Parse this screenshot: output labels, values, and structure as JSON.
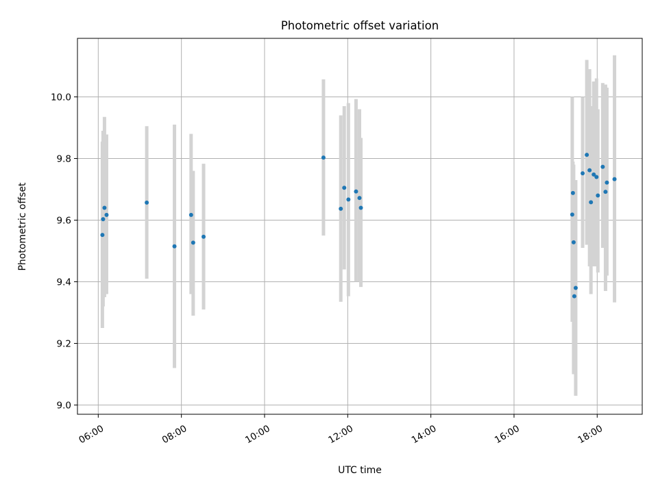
{
  "chart_data": {
    "type": "scatter",
    "title": "Photometric offset variation",
    "xlabel": "UTC time",
    "ylabel": "Photometric offset",
    "xlim": [
      "05:30",
      "19:05"
    ],
    "ylim": [
      8.97,
      10.19
    ],
    "x_ticks": [
      "06:00",
      "08:00",
      "10:00",
      "12:00",
      "14:00",
      "16:00",
      "18:00"
    ],
    "y_ticks": [
      "9.0",
      "9.2",
      "9.4",
      "9.6",
      "9.8",
      "10.0"
    ],
    "grid": true,
    "legend": false,
    "colors": {
      "point": "#1f77b4",
      "errorbar": "#d3d3d3",
      "grid": "#b0b0b0"
    },
    "points": [
      {
        "x": "06:06",
        "y": 9.552,
        "ylow": 9.25,
        "yhigh": 9.855
      },
      {
        "x": "06:07",
        "y": 9.603,
        "ylow": 9.32,
        "yhigh": 9.89
      },
      {
        "x": "06:09",
        "y": 9.64,
        "ylow": 9.35,
        "yhigh": 9.935
      },
      {
        "x": "06:12",
        "y": 9.617,
        "ylow": 9.36,
        "yhigh": 9.878
      },
      {
        "x": "07:10",
        "y": 9.657,
        "ylow": 9.41,
        "yhigh": 9.905
      },
      {
        "x": "07:50",
        "y": 9.515,
        "ylow": 9.12,
        "yhigh": 9.91
      },
      {
        "x": "08:14",
        "y": 9.617,
        "ylow": 9.36,
        "yhigh": 9.88
      },
      {
        "x": "08:17",
        "y": 9.527,
        "ylow": 9.29,
        "yhigh": 9.76
      },
      {
        "x": "08:32",
        "y": 9.546,
        "ylow": 9.31,
        "yhigh": 9.783
      },
      {
        "x": "11:25",
        "y": 9.803,
        "ylow": 9.55,
        "yhigh": 10.057
      },
      {
        "x": "11:50",
        "y": 9.637,
        "ylow": 9.335,
        "yhigh": 9.94
      },
      {
        "x": "11:55",
        "y": 9.705,
        "ylow": 9.44,
        "yhigh": 9.97
      },
      {
        "x": "12:01",
        "y": 9.667,
        "ylow": 9.353,
        "yhigh": 9.98
      },
      {
        "x": "12:12",
        "y": 9.693,
        "ylow": 9.4,
        "yhigh": 9.993
      },
      {
        "x": "12:17",
        "y": 9.672,
        "ylow": 9.4,
        "yhigh": 9.96
      },
      {
        "x": "12:19",
        "y": 9.64,
        "ylow": 9.383,
        "yhigh": 9.867
      },
      {
        "x": "17:24",
        "y": 9.618,
        "ylow": 9.27,
        "yhigh": 10.0
      },
      {
        "x": "17:25",
        "y": 9.688,
        "ylow": 9.45,
        "yhigh": 9.79
      },
      {
        "x": "17:26",
        "y": 9.528,
        "ylow": 9.1,
        "yhigh": 9.78
      },
      {
        "x": "17:27",
        "y": 9.353,
        "ylow": 9.19,
        "yhigh": 9.52
      },
      {
        "x": "17:29",
        "y": 9.38,
        "ylow": 9.03,
        "yhigh": 9.73
      },
      {
        "x": "17:39",
        "y": 9.752,
        "ylow": 9.51,
        "yhigh": 10.0
      },
      {
        "x": "17:45",
        "y": 9.812,
        "ylow": 9.52,
        "yhigh": 10.12
      },
      {
        "x": "17:49",
        "y": 9.762,
        "ylow": 9.45,
        "yhigh": 10.09
      },
      {
        "x": "17:51",
        "y": 9.658,
        "ylow": 9.36,
        "yhigh": 9.97
      },
      {
        "x": "17:55",
        "y": 9.748,
        "ylow": 9.45,
        "yhigh": 10.05
      },
      {
        "x": "17:59",
        "y": 9.74,
        "ylow": 9.45,
        "yhigh": 10.06
      },
      {
        "x": "18:01",
        "y": 9.68,
        "ylow": 9.43,
        "yhigh": 9.96
      },
      {
        "x": "18:08",
        "y": 9.773,
        "ylow": 9.51,
        "yhigh": 10.045
      },
      {
        "x": "18:12",
        "y": 9.692,
        "ylow": 9.37,
        "yhigh": 10.04
      },
      {
        "x": "18:14",
        "y": 9.722,
        "ylow": 9.42,
        "yhigh": 10.03
      },
      {
        "x": "18:25",
        "y": 9.733,
        "ylow": 9.333,
        "yhigh": 10.135
      }
    ]
  }
}
